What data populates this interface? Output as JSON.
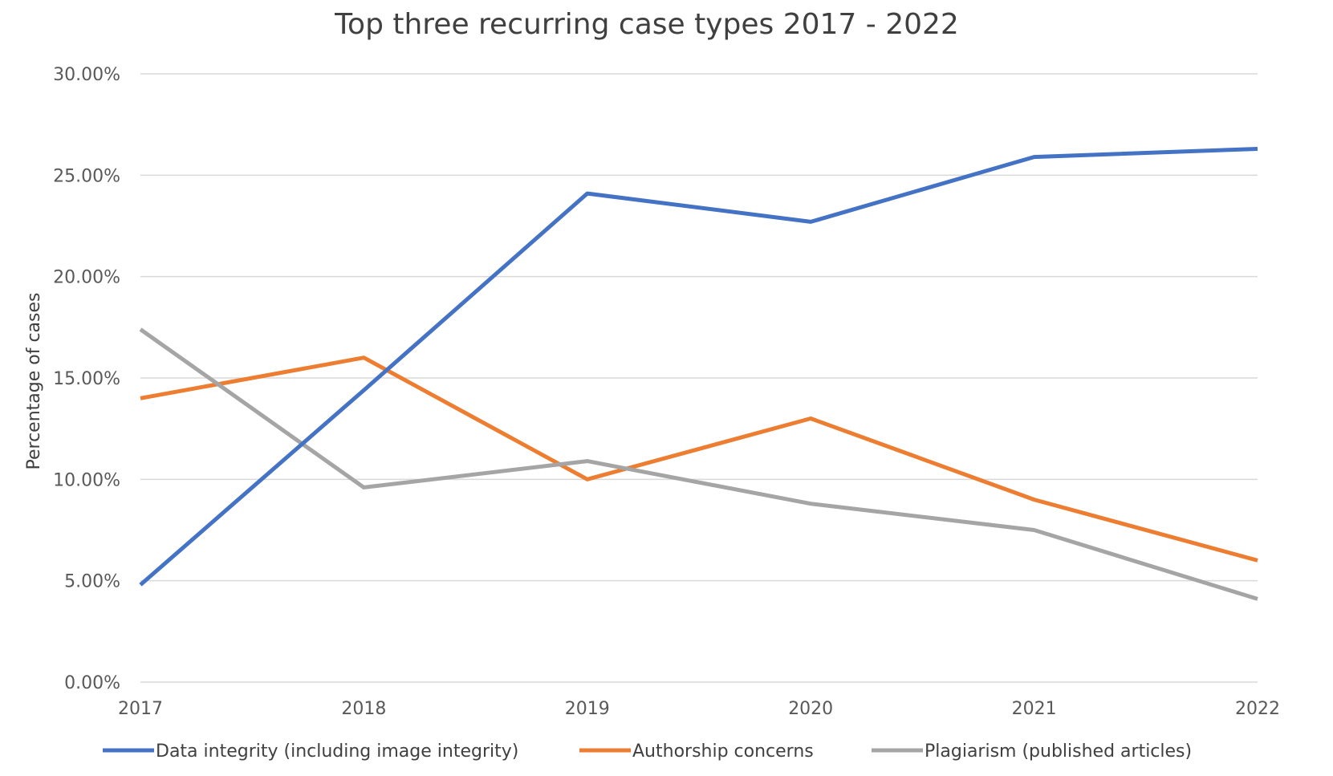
{
  "chart_data": {
    "type": "line",
    "title": "Top three recurring case types 2017 - 2022",
    "xlabel": "",
    "ylabel": "Percentage of cases",
    "categories": [
      "2017",
      "2018",
      "2019",
      "2020",
      "2021",
      "2022"
    ],
    "ylim": [
      0,
      30
    ],
    "yticks": [
      0,
      5,
      10,
      15,
      20,
      25,
      30
    ],
    "ytick_labels": [
      "0.00%",
      "5.00%",
      "10.00%",
      "15.00%",
      "20.00%",
      "25.00%",
      "30.00%"
    ],
    "grid": "horizontal",
    "legend_position": "bottom",
    "series": [
      {
        "name": "Data integrity (including image integrity)",
        "color": "#4472c4",
        "values": [
          4.8,
          14.4,
          24.1,
          22.7,
          25.9,
          26.3
        ]
      },
      {
        "name": "Authorship concerns",
        "color": "#ed7d31",
        "values": [
          14.0,
          16.0,
          10.0,
          13.0,
          9.0,
          6.0
        ]
      },
      {
        "name": "Plagiarism (published articles)",
        "color": "#a5a5a5",
        "values": [
          17.4,
          9.6,
          10.9,
          8.8,
          7.5,
          4.1
        ]
      }
    ]
  }
}
